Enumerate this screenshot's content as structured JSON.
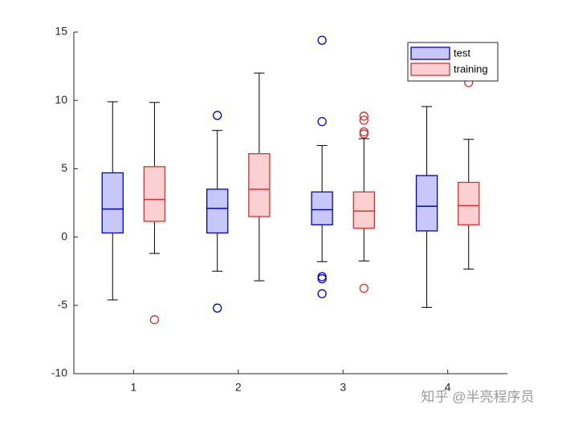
{
  "chart_data": {
    "type": "box",
    "categories": [
      "1",
      "2",
      "3",
      "4"
    ],
    "xlim": [
      0.43,
      4.57
    ],
    "ylim": [
      -10,
      15
    ],
    "yticks": [
      -10,
      -5,
      0,
      5,
      10,
      15
    ],
    "legend": "northeast",
    "whisker_color": "#000000",
    "watermark": "知乎 @半亮程序员",
    "series": [
      {
        "name": "test",
        "color": "#0000cc",
        "fill": "#c8c8f8",
        "offset": -0.2,
        "boxes": [
          {
            "whisker_low": -4.6,
            "q1": 0.3,
            "median": 2.05,
            "q3": 4.7,
            "whisker_high": 9.9,
            "outliers": []
          },
          {
            "whisker_low": -2.5,
            "q1": 0.3,
            "median": 2.1,
            "q3": 3.5,
            "whisker_high": 7.8,
            "outliers": [
              8.9,
              -5.2
            ]
          },
          {
            "whisker_low": -1.8,
            "q1": 0.9,
            "median": 2.0,
            "q3": 3.3,
            "whisker_high": 6.7,
            "outliers": [
              14.4,
              8.45,
              -2.9,
              -3.05,
              -4.15
            ]
          },
          {
            "whisker_low": -5.15,
            "q1": 0.45,
            "median": 2.25,
            "q3": 4.5,
            "whisker_high": 9.55,
            "outliers": []
          }
        ]
      },
      {
        "name": "training",
        "color": "#d93030",
        "fill": "#fcd0d0",
        "offset": 0.2,
        "boxes": [
          {
            "whisker_low": -1.2,
            "q1": 1.15,
            "median": 2.75,
            "q3": 5.15,
            "whisker_high": 9.85,
            "outliers": [
              -6.05
            ]
          },
          {
            "whisker_low": -3.2,
            "q1": 1.5,
            "median": 3.5,
            "q3": 6.1,
            "whisker_high": 12.0,
            "outliers": []
          },
          {
            "whisker_low": -1.75,
            "q1": 0.65,
            "median": 1.9,
            "q3": 3.3,
            "whisker_high": 7.2,
            "outliers": [
              8.85,
              8.55,
              7.7,
              7.55,
              -3.75
            ]
          },
          {
            "whisker_low": -2.35,
            "q1": 0.9,
            "median": 2.3,
            "q3": 4.0,
            "whisker_high": 7.15,
            "outliers": [
              11.3
            ]
          }
        ]
      }
    ]
  }
}
